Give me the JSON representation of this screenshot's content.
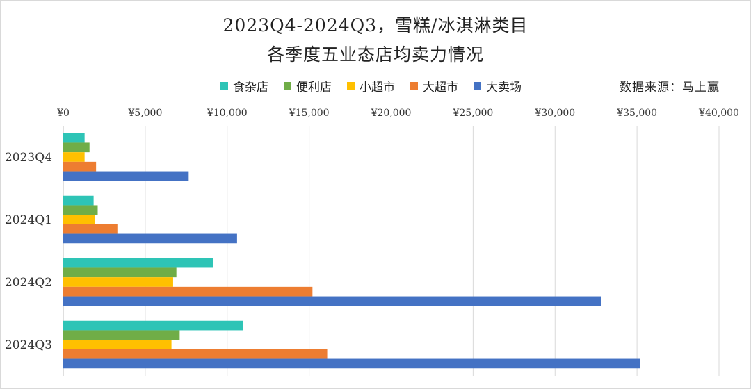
{
  "title_line1": "2023Q4-2024Q3，雪糕/冰淇淋类目",
  "title_line2": "各季度五业态店均卖力情况",
  "source": "数据来源：马上赢",
  "chart_data": {
    "type": "bar",
    "orientation": "horizontal",
    "categories": [
      "2023Q4",
      "2024Q1",
      "2024Q2",
      "2024Q3"
    ],
    "series": [
      {
        "name": "食杂店",
        "color": "#2EC4B6",
        "values": [
          1300,
          1850,
          9150,
          10950
        ]
      },
      {
        "name": "便利店",
        "color": "#70AD47",
        "values": [
          1600,
          2100,
          6900,
          7100
        ]
      },
      {
        "name": "小超市",
        "color": "#FFC000",
        "values": [
          1300,
          1950,
          6700,
          6600
        ]
      },
      {
        "name": "大超市",
        "color": "#ED7D31",
        "values": [
          2000,
          3300,
          15200,
          16100
        ]
      },
      {
        "name": "大卖场",
        "color": "#4472C4",
        "values": [
          7650,
          10600,
          32800,
          35200
        ]
      }
    ],
    "xlim": [
      0,
      40000
    ],
    "tick_labels": [
      "¥0",
      "¥5,000",
      "¥10,000",
      "¥15,000",
      "¥20,000",
      "¥25,000",
      "¥30,000",
      "¥35,000",
      "¥40,000"
    ],
    "grid": true,
    "legend_position": "top"
  }
}
